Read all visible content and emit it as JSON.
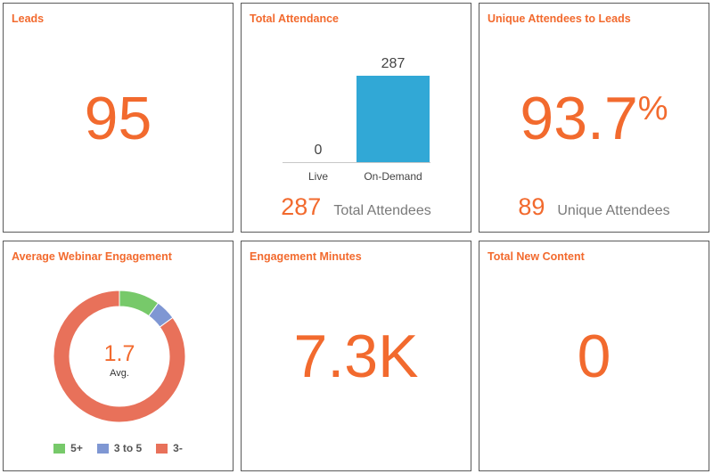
{
  "colors": {
    "accent": "#f26a2e",
    "bar": "#31a8d6",
    "green": "#77c96a",
    "blue": "#7f97d3",
    "red": "#e8715a"
  },
  "cards": {
    "leads": {
      "title": "Leads",
      "value": "95"
    },
    "attendance": {
      "title": "Total Attendance",
      "summary_value": "287",
      "summary_label": "Total Attendees"
    },
    "unique": {
      "title": "Unique Attendees to Leads",
      "value": "93.7",
      "unit": "%",
      "summary_value": "89",
      "summary_label": "Unique Attendees"
    },
    "engagement": {
      "title": "Average Webinar Engagement",
      "center_value": "1.7",
      "center_label": "Avg."
    },
    "minutes": {
      "title": "Engagement Minutes",
      "value": "7.3K"
    },
    "content": {
      "title": "Total New Content",
      "value": "0"
    }
  },
  "chart_data": [
    {
      "type": "bar",
      "categories": [
        "Live",
        "On-Demand"
      ],
      "values": [
        0,
        287
      ],
      "title": "Total Attendance",
      "ylim": [
        0,
        287
      ]
    },
    {
      "type": "pie",
      "categories": [
        "5+",
        "3 to 5",
        "3-"
      ],
      "values": [
        10,
        5,
        85
      ],
      "title": "Average Webinar Engagement",
      "legend": "bottom"
    }
  ]
}
